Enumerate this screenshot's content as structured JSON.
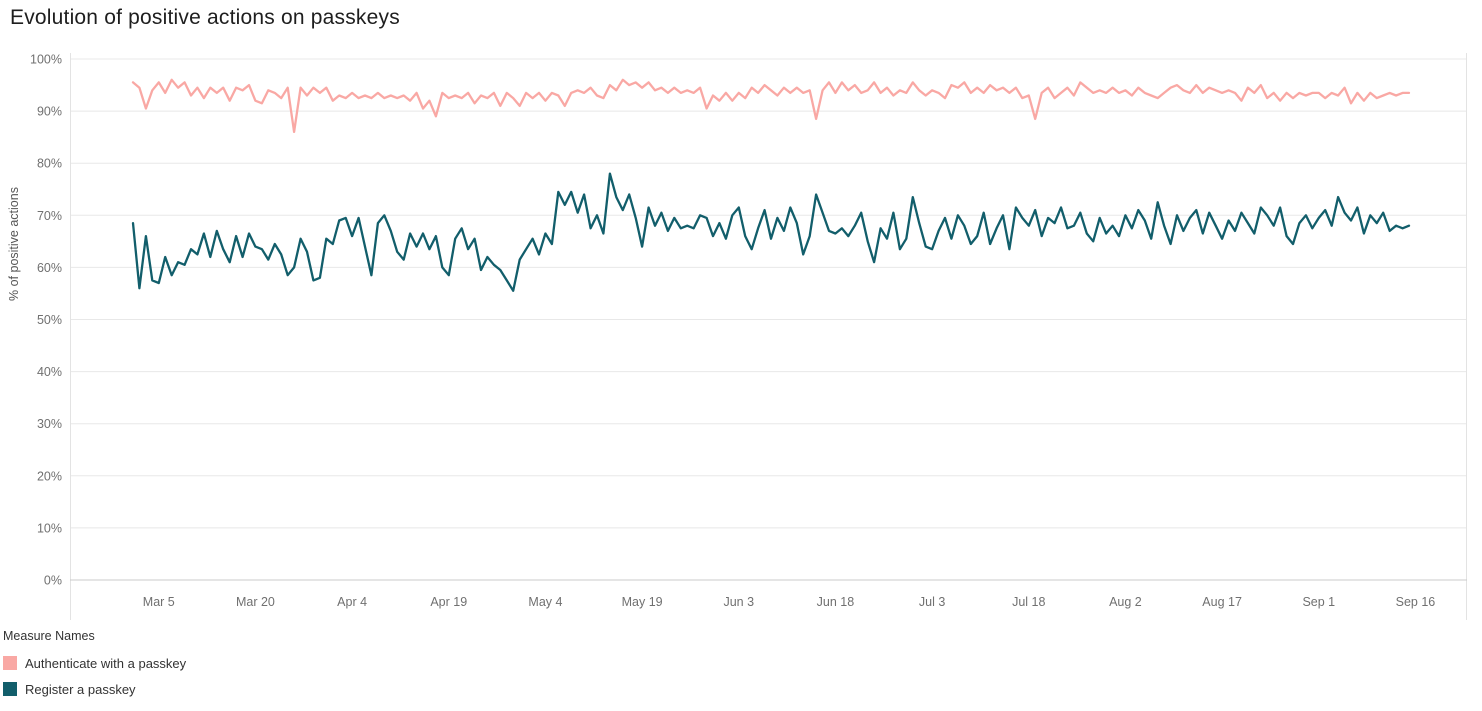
{
  "chart": {
    "title": "Evolution of positive actions on passkeys"
  },
  "legend": {
    "title": "Measure Names",
    "items": [
      {
        "label": "Authenticate with a passkey",
        "color": "#F9A8A4"
      },
      {
        "label": "Register a passkey",
        "color": "#125E6B"
      }
    ]
  },
  "chart_data": {
    "type": "line",
    "title": "Evolution of positive actions on passkeys",
    "xlabel": "",
    "ylabel": "% of positive actions",
    "ylim": [
      0,
      100
    ],
    "grid": "horizontal",
    "legend_position": "bottom-left",
    "x_interval": "daily",
    "x_start_label": "Mar 1",
    "x_end_label": "Sep 15",
    "x_tick_labels": [
      "Mar 5",
      "Mar 20",
      "Apr 4",
      "Apr 19",
      "May 4",
      "May 19",
      "Jun 3",
      "Jun 18",
      "Jul 3",
      "Jul 18",
      "Aug 2",
      "Aug 17",
      "Sep 1",
      "Sep 16"
    ],
    "x_tick_days": [
      4,
      19,
      34,
      49,
      64,
      79,
      94,
      109,
      124,
      139,
      154,
      169,
      184,
      199
    ],
    "y_ticks": [
      "0%",
      "10%",
      "20%",
      "30%",
      "40%",
      "50%",
      "60%",
      "70%",
      "80%",
      "90%",
      "100%"
    ],
    "series": [
      {
        "name": "Authenticate with a passkey",
        "color": "#F9A8A4",
        "values": [
          95.5,
          94.5,
          90.5,
          94,
          95.5,
          93.5,
          96,
          94.5,
          95.5,
          93,
          94.5,
          92.5,
          94.5,
          93.5,
          94.5,
          92,
          94.5,
          94,
          95,
          92,
          91.5,
          94,
          93.5,
          92.5,
          94.5,
          86,
          94.5,
          93,
          94.5,
          93.5,
          94.5,
          92,
          93,
          92.5,
          93.5,
          92.5,
          93,
          92.5,
          93.5,
          92.5,
          93,
          92.5,
          93,
          92,
          93.5,
          90.5,
          92,
          89,
          93.5,
          92.5,
          93,
          92.5,
          93.5,
          91.5,
          93,
          92.5,
          93.5,
          91,
          93.5,
          92.5,
          91,
          93.5,
          92.5,
          93.5,
          92,
          93.5,
          93,
          91,
          93.5,
          94,
          93.5,
          94.5,
          93,
          92.5,
          95,
          94,
          96,
          95,
          95.5,
          94.5,
          95.5,
          94,
          94.5,
          93.5,
          94.5,
          93.5,
          94,
          93.5,
          94.5,
          90.5,
          93,
          92,
          93.5,
          92,
          93.5,
          92.5,
          94.5,
          93.5,
          95,
          94,
          93,
          94.5,
          93.5,
          94.5,
          93.5,
          94,
          88.5,
          94,
          95.5,
          93.5,
          95.5,
          94,
          95,
          93.5,
          94,
          95.5,
          93.5,
          94.5,
          93,
          94,
          93.5,
          95.5,
          94,
          93,
          94,
          93.5,
          92.5,
          95,
          94.5,
          95.5,
          93.5,
          94.5,
          93.5,
          95,
          94,
          94.5,
          93.5,
          94.5,
          92.5,
          93,
          88.5,
          93.5,
          94.5,
          92.5,
          93.5,
          94.5,
          93,
          95.5,
          94.5,
          93.5,
          94,
          93.5,
          94.5,
          93.5,
          94,
          93,
          94.5,
          93.5,
          93,
          92.5,
          93.5,
          94.5,
          95,
          94,
          93.5,
          95,
          93.5,
          94.5,
          94,
          93.5,
          94,
          93.5,
          92,
          94.5,
          93.5,
          95,
          92.5,
          93.5,
          92,
          93.5,
          92.5,
          93.5,
          93,
          93.5,
          93.5,
          92.5,
          93.5,
          93,
          94.5,
          91.5,
          93.5,
          92,
          93.5,
          92.5,
          93,
          93.5,
          93,
          93.5,
          93.5
        ]
      },
      {
        "name": "Register a passkey",
        "color": "#125E6B",
        "values": [
          68.5,
          56,
          66,
          57.5,
          57,
          62,
          58.5,
          61,
          60.5,
          63.5,
          62.5,
          66.5,
          62,
          67,
          63.5,
          61,
          66,
          62,
          66.5,
          64,
          63.5,
          61.5,
          64.5,
          62.5,
          58.5,
          60,
          65.5,
          63,
          57.5,
          58,
          65.5,
          64.5,
          69,
          69.5,
          66,
          69.5,
          64,
          58.5,
          68.5,
          70,
          67,
          63,
          61.5,
          66.5,
          64,
          66.5,
          63.5,
          66,
          60,
          58.5,
          65.5,
          67.5,
          63.5,
          65.5,
          59.5,
          62,
          60.5,
          59.5,
          57.5,
          55.5,
          61.5,
          63.5,
          65.5,
          62.5,
          66.5,
          64.5,
          74.5,
          72,
          74.5,
          70.5,
          74,
          67.5,
          70,
          66.5,
          78,
          73.5,
          71,
          74,
          69.5,
          64,
          71.5,
          68,
          70.5,
          67,
          69.5,
          67.5,
          68,
          67.5,
          70,
          69.5,
          66,
          68.5,
          65.5,
          70,
          71.5,
          66,
          63.5,
          67.5,
          71,
          65.5,
          69.5,
          67,
          71.5,
          68.5,
          62.5,
          66,
          74,
          70.5,
          67,
          66.5,
          67.5,
          66,
          68,
          70.5,
          65,
          61,
          67.5,
          65.5,
          70.5,
          63.5,
          65.5,
          73.5,
          68.5,
          64,
          63.5,
          67,
          69.5,
          65.5,
          70,
          68,
          64.5,
          66,
          70.5,
          64.5,
          67.5,
          70,
          63.5,
          71.5,
          69.5,
          68,
          71,
          66,
          69.5,
          68.5,
          71.5,
          67.5,
          68,
          70.5,
          66.5,
          65,
          69.5,
          66.5,
          68,
          66,
          70,
          67.5,
          71,
          69,
          65.5,
          72.5,
          68,
          64.5,
          70,
          67,
          69.5,
          71,
          66.5,
          70.5,
          68,
          65.5,
          69,
          67,
          70.5,
          68.5,
          66.5,
          71.5,
          70,
          68,
          71.5,
          66,
          64.5,
          68.5,
          70,
          67.5,
          69.5,
          71,
          68,
          73.5,
          70.5,
          69,
          71.5,
          66.5,
          70,
          68.5,
          70.5,
          67,
          68,
          67.5,
          68
        ]
      }
    ]
  }
}
